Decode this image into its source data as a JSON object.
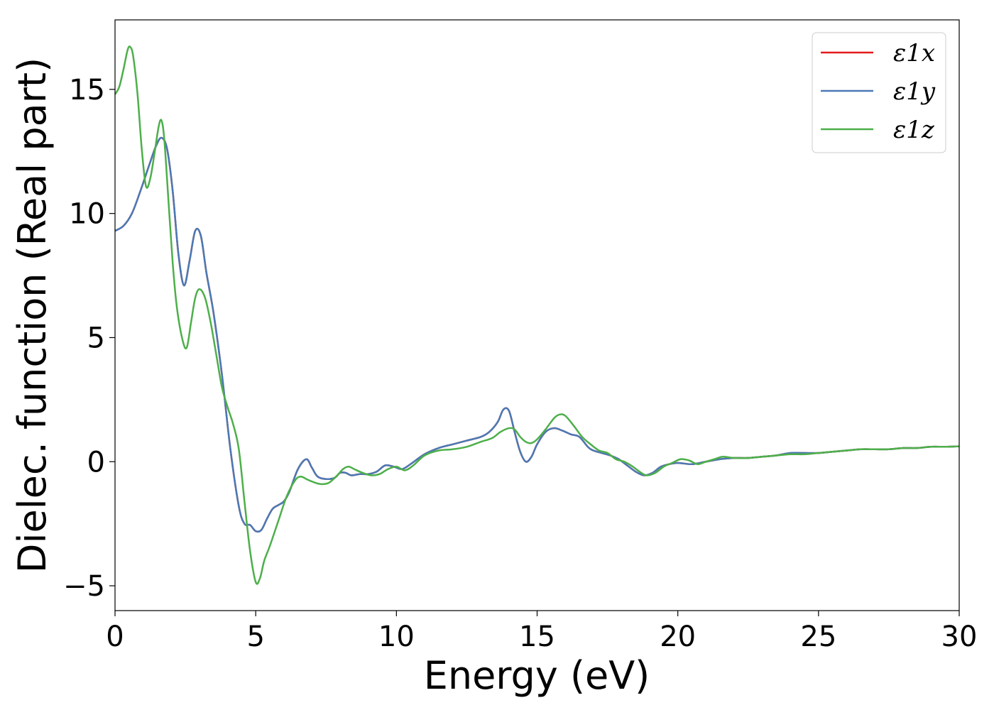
{
  "chart_data": {
    "type": "line",
    "title": "",
    "xlabel": "Energy (eV)",
    "ylabel": "Dielec. function (Real part)",
    "xlim": [
      0,
      30
    ],
    "ylim": [
      -6,
      17.8
    ],
    "xticks": [
      0,
      5,
      10,
      15,
      20,
      25,
      30
    ],
    "yticks": [
      -5,
      0,
      5,
      10,
      15
    ],
    "xtick_labels": [
      "0",
      "5",
      "10",
      "15",
      "20",
      "25",
      "30"
    ],
    "ytick_labels": [
      "−5",
      "0",
      "5",
      "10",
      "15"
    ],
    "grid": false,
    "legend_position": "top-right",
    "series": [
      {
        "name": "ε1x",
        "color": "#e41a1c",
        "x": [
          0,
          0.3,
          0.6,
          0.9,
          1.2,
          1.45,
          1.65,
          1.85,
          2.05,
          2.25,
          2.45,
          2.65,
          2.85,
          3.05,
          3.25,
          3.5,
          3.8,
          4.1,
          4.4,
          4.6,
          4.8,
          5.0,
          5.2,
          5.4,
          5.6,
          5.8,
          6.0,
          6.2,
          6.5,
          6.8,
          7.0,
          7.2,
          7.5,
          7.8,
          8.0,
          8.2,
          8.4,
          8.7,
          9.0,
          9.3,
          9.6,
          9.9,
          10.2,
          10.5,
          11.0,
          11.5,
          12.0,
          12.5,
          13.0,
          13.3,
          13.6,
          13.8,
          14.0,
          14.2,
          14.4,
          14.6,
          14.8,
          15.0,
          15.3,
          15.6,
          15.9,
          16.2,
          16.5,
          16.8,
          17.0,
          17.3,
          17.6,
          17.9,
          18.2,
          18.5,
          18.8,
          19.1,
          19.4,
          19.7,
          20.0,
          20.5,
          21.0,
          21.5,
          22.0,
          22.5,
          23.0,
          23.5,
          24.0,
          24.5,
          25.0,
          25.5,
          26.0,
          26.5,
          27.0,
          27.5,
          28.0,
          28.5,
          29.0,
          29.5,
          30.0
        ],
        "y": [
          9.3,
          9.5,
          10.0,
          10.9,
          11.9,
          12.7,
          13.05,
          12.6,
          10.9,
          8.4,
          7.1,
          8.1,
          9.3,
          9.1,
          7.6,
          6.0,
          3.5,
          0.5,
          -1.8,
          -2.5,
          -2.55,
          -2.8,
          -2.75,
          -2.3,
          -1.9,
          -1.75,
          -1.6,
          -1.2,
          -0.3,
          0.1,
          -0.25,
          -0.6,
          -0.7,
          -0.65,
          -0.45,
          -0.45,
          -0.55,
          -0.5,
          -0.5,
          -0.4,
          -0.15,
          -0.2,
          -0.3,
          -0.1,
          0.3,
          0.55,
          0.7,
          0.85,
          1.0,
          1.2,
          1.6,
          2.1,
          2.05,
          1.2,
          0.4,
          0.0,
          0.2,
          0.7,
          1.2,
          1.35,
          1.25,
          1.1,
          1.0,
          0.6,
          0.45,
          0.35,
          0.25,
          0.1,
          -0.15,
          -0.4,
          -0.55,
          -0.45,
          -0.2,
          -0.1,
          -0.05,
          -0.1,
          0.0,
          0.1,
          0.15,
          0.15,
          0.2,
          0.25,
          0.35,
          0.35,
          0.35,
          0.4,
          0.45,
          0.5,
          0.5,
          0.5,
          0.55,
          0.55,
          0.6,
          0.6,
          0.62
        ]
      },
      {
        "name": "ε1y",
        "color": "#4a7ab5",
        "x": [
          0,
          0.3,
          0.6,
          0.9,
          1.2,
          1.45,
          1.65,
          1.85,
          2.05,
          2.25,
          2.45,
          2.65,
          2.85,
          3.05,
          3.25,
          3.5,
          3.8,
          4.1,
          4.4,
          4.6,
          4.8,
          5.0,
          5.2,
          5.4,
          5.6,
          5.8,
          6.0,
          6.2,
          6.5,
          6.8,
          7.0,
          7.2,
          7.5,
          7.8,
          8.0,
          8.2,
          8.4,
          8.7,
          9.0,
          9.3,
          9.6,
          9.9,
          10.2,
          10.5,
          11.0,
          11.5,
          12.0,
          12.5,
          13.0,
          13.3,
          13.6,
          13.8,
          14.0,
          14.2,
          14.4,
          14.6,
          14.8,
          15.0,
          15.3,
          15.6,
          15.9,
          16.2,
          16.5,
          16.8,
          17.0,
          17.3,
          17.6,
          17.9,
          18.2,
          18.5,
          18.8,
          19.1,
          19.4,
          19.7,
          20.0,
          20.5,
          21.0,
          21.5,
          22.0,
          22.5,
          23.0,
          23.5,
          24.0,
          24.5,
          25.0,
          25.5,
          26.0,
          26.5,
          27.0,
          27.5,
          28.0,
          28.5,
          29.0,
          29.5,
          30.0
        ],
        "y": [
          9.3,
          9.5,
          10.0,
          10.9,
          11.9,
          12.7,
          13.05,
          12.6,
          10.9,
          8.4,
          7.1,
          8.1,
          9.3,
          9.1,
          7.6,
          6.0,
          3.5,
          0.5,
          -1.8,
          -2.5,
          -2.55,
          -2.8,
          -2.75,
          -2.3,
          -1.9,
          -1.75,
          -1.6,
          -1.2,
          -0.3,
          0.1,
          -0.25,
          -0.6,
          -0.7,
          -0.65,
          -0.45,
          -0.45,
          -0.55,
          -0.5,
          -0.5,
          -0.4,
          -0.15,
          -0.2,
          -0.3,
          -0.1,
          0.3,
          0.55,
          0.7,
          0.85,
          1.0,
          1.2,
          1.6,
          2.1,
          2.05,
          1.2,
          0.4,
          0.0,
          0.2,
          0.7,
          1.2,
          1.35,
          1.25,
          1.1,
          1.0,
          0.6,
          0.45,
          0.35,
          0.25,
          0.1,
          -0.15,
          -0.4,
          -0.55,
          -0.45,
          -0.2,
          -0.1,
          -0.05,
          -0.1,
          0.0,
          0.1,
          0.15,
          0.15,
          0.2,
          0.25,
          0.35,
          0.35,
          0.35,
          0.4,
          0.45,
          0.5,
          0.5,
          0.5,
          0.55,
          0.55,
          0.6,
          0.6,
          0.62
        ]
      },
      {
        "name": "ε1z",
        "color": "#4daf4a",
        "x": [
          0,
          0.15,
          0.3,
          0.45,
          0.55,
          0.65,
          0.8,
          0.95,
          1.1,
          1.25,
          1.4,
          1.55,
          1.65,
          1.75,
          1.9,
          2.05,
          2.2,
          2.4,
          2.55,
          2.7,
          2.85,
          3.0,
          3.2,
          3.4,
          3.6,
          3.8,
          4.0,
          4.2,
          4.4,
          4.6,
          4.8,
          5.0,
          5.15,
          5.3,
          5.5,
          5.8,
          6.1,
          6.4,
          6.6,
          6.8,
          7.0,
          7.3,
          7.6,
          7.9,
          8.1,
          8.3,
          8.5,
          8.8,
          9.1,
          9.4,
          9.7,
          10.0,
          10.3,
          10.6,
          11.0,
          11.5,
          12.0,
          12.5,
          13.0,
          13.4,
          13.7,
          14.0,
          14.2,
          14.4,
          14.6,
          14.8,
          15.0,
          15.3,
          15.6,
          15.8,
          16.0,
          16.3,
          16.6,
          16.9,
          17.2,
          17.5,
          17.8,
          18.1,
          18.4,
          18.7,
          18.9,
          19.2,
          19.5,
          19.8,
          20.1,
          20.4,
          20.7,
          21.0,
          21.3,
          21.6,
          22.0,
          22.5,
          23.0,
          23.5,
          24.0,
          24.5,
          25.0,
          25.5,
          26.0,
          26.5,
          27.0,
          27.5,
          28.0,
          28.5,
          29.0,
          29.5,
          30.0
        ],
        "y": [
          14.8,
          15.1,
          15.8,
          16.6,
          16.7,
          16.3,
          14.8,
          12.6,
          11.1,
          11.4,
          12.4,
          13.5,
          13.75,
          13.0,
          10.5,
          8.0,
          6.2,
          4.9,
          4.6,
          5.6,
          6.6,
          6.95,
          6.6,
          5.6,
          4.3,
          3.0,
          2.2,
          1.5,
          0.5,
          -1.6,
          -3.6,
          -4.85,
          -4.7,
          -4.0,
          -3.4,
          -2.4,
          -1.4,
          -0.75,
          -0.6,
          -0.7,
          -0.8,
          -0.9,
          -0.85,
          -0.55,
          -0.3,
          -0.2,
          -0.3,
          -0.45,
          -0.55,
          -0.5,
          -0.3,
          -0.2,
          -0.35,
          -0.15,
          0.25,
          0.45,
          0.5,
          0.6,
          0.8,
          0.95,
          1.2,
          1.35,
          1.3,
          1.0,
          0.8,
          0.75,
          0.9,
          1.3,
          1.75,
          1.9,
          1.85,
          1.45,
          1.0,
          0.7,
          0.45,
          0.35,
          0.1,
          0.0,
          -0.2,
          -0.45,
          -0.55,
          -0.45,
          -0.2,
          -0.05,
          0.1,
          0.05,
          -0.1,
          0.0,
          0.1,
          0.2,
          0.15,
          0.15,
          0.2,
          0.25,
          0.3,
          0.3,
          0.35,
          0.4,
          0.45,
          0.5,
          0.5,
          0.5,
          0.55,
          0.55,
          0.6,
          0.6,
          0.62
        ]
      }
    ]
  }
}
